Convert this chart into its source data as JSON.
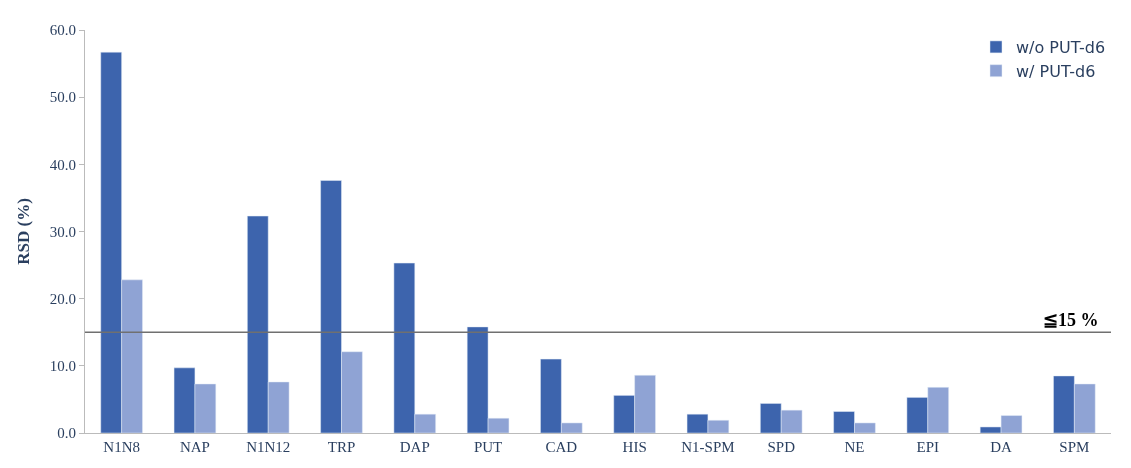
{
  "chart_data": {
    "type": "bar",
    "ylabel": "RSD (%)",
    "categories": [
      "N1N8",
      "NAP",
      "N1N12",
      "TRP",
      "DAP",
      "PUT",
      "CAD",
      "HIS",
      "N1-SPM",
      "SPD",
      "NE",
      "EPI",
      "DA",
      "SPM"
    ],
    "series": [
      {
        "name": "w/o PUT-d6",
        "color": "#3d64ad",
        "values": [
          56.7,
          9.7,
          32.3,
          37.6,
          25.3,
          15.8,
          11.0,
          5.6,
          2.8,
          4.4,
          3.2,
          5.3,
          0.9,
          8.5
        ]
      },
      {
        "name": "w/ PUT-d6",
        "color": "#8fa3d4",
        "values": [
          22.8,
          7.3,
          7.6,
          12.1,
          2.8,
          2.2,
          1.5,
          8.6,
          1.9,
          3.4,
          1.5,
          6.8,
          2.6,
          7.3
        ]
      }
    ],
    "ylim": [
      0,
      60
    ],
    "yticks": [
      {
        "value": 0,
        "label": "0.0"
      },
      {
        "value": 10,
        "label": "10.0"
      },
      {
        "value": 20,
        "label": "20.0"
      },
      {
        "value": 30,
        "label": "30.0"
      },
      {
        "value": 40,
        "label": "40.0"
      },
      {
        "value": 50,
        "label": "50.0"
      },
      {
        "value": 60,
        "label": "60.0"
      }
    ],
    "ref_lines": [
      {
        "axis": "y",
        "value": 15,
        "label": "≦15 %",
        "color": "#707070"
      }
    ],
    "legend": "top right"
  }
}
